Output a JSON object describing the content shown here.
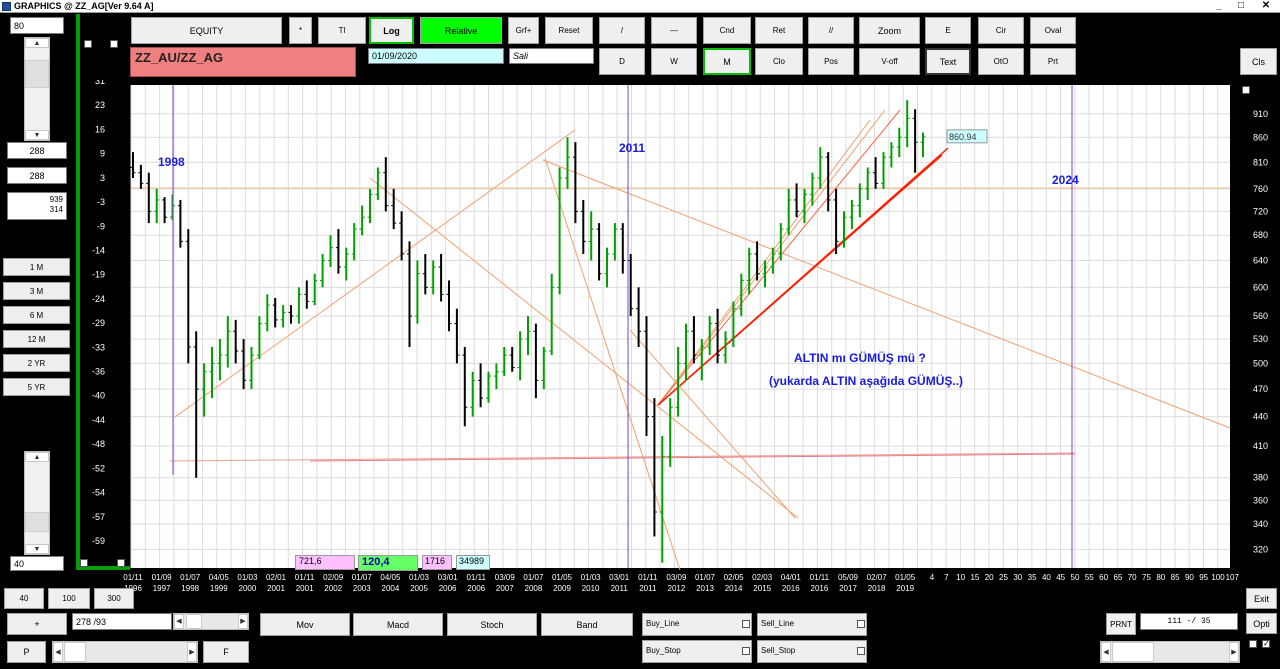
{
  "window": {
    "title": "GRAPHICS @ ZZ_AG[Ver 9.64 A]",
    "controls": [
      "_",
      "□",
      "✕"
    ]
  },
  "toolbar_row1": {
    "equity": "EQUITY",
    "star": "*",
    "tt": "Tl",
    "log": "Log",
    "relative": "Relative",
    "grf_plus": "Grf+",
    "reset": "Reset",
    "slash_one": "/",
    "dash": "—",
    "cnd": "Cnd",
    "ret": "Ret",
    "double_slash": "//",
    "zoom": "Zoom",
    "e": "E",
    "cir": "Cir",
    "oval": "Oval"
  },
  "toolbar_row2": {
    "d": "D",
    "w": "W",
    "m": "M",
    "clo": "Clo",
    "pos": "Pos",
    "v_off": "V-off",
    "text": "Text",
    "oto": "OtO",
    "prt": "Prt"
  },
  "cls": "Cls",
  "symbol": "ZZ_AU/ZZ_AG",
  "date": "01/09/2020",
  "day": "Sali",
  "left_panel": {
    "top_value": "80",
    "box1": "288",
    "box2": "288",
    "box3_line1": "939",
    "box3_line2": "314",
    "periods": [
      "1 M",
      "3 M",
      "6 M",
      "12 M",
      "2 YR",
      "5 YR"
    ],
    "bottom_value": "40"
  },
  "info_boxes": {
    "pink": "721,6",
    "green": "120,4",
    "violet": "1716",
    "cyan": "34989"
  },
  "bottom": {
    "b40": "40",
    "b100": "100",
    "b300": "300",
    "plus": "+",
    "counter": "278 /93",
    "p": "P",
    "f": "F",
    "mov": "Mov",
    "macd": "Macd",
    "stoch": "Stoch",
    "band": "Band",
    "buy_line": "Buy_Line",
    "sell_line": "Sell_Line",
    "buy_stop": "Buy_Stop",
    "sell_stop": "Sell_Stop",
    "prnt": "PRNT",
    "page": "111 -/ 35",
    "exit": "Exit",
    "opti": "Opti",
    "check_mark": "✓"
  },
  "chart_data": {
    "type": "bar",
    "description_type": "ohlc",
    "left_axis_label": "%",
    "left_axis_ticks": [
      "31",
      "23",
      "16",
      "9",
      "3",
      "-3",
      "-9",
      "-14",
      "-19",
      "-24",
      "-29",
      "-33",
      "-36",
      "-40",
      "-44",
      "-48",
      "-52",
      "-54",
      "-57",
      "-59"
    ],
    "right_axis_ticks": [
      "910",
      "860",
      "810",
      "760",
      "720",
      "680",
      "640",
      "600",
      "560",
      "530",
      "500",
      "470",
      "440",
      "410",
      "380",
      "360",
      "340",
      "320"
    ],
    "right_axis_range": [
      306,
      975
    ],
    "right_axis_scale": "log",
    "x_ticks": [
      [
        "01/11",
        "1996"
      ],
      [
        "01/09",
        "1997"
      ],
      [
        "01/07",
        "1998"
      ],
      [
        "04/05",
        "1999"
      ],
      [
        "01/03",
        "2000"
      ],
      [
        "02/01",
        "2001"
      ],
      [
        "01/11",
        "2001"
      ],
      [
        "02/09",
        "2002"
      ],
      [
        "01/07",
        "2003"
      ],
      [
        "04/05",
        "2004"
      ],
      [
        "01/03",
        "2005"
      ],
      [
        "03/01",
        "2006"
      ],
      [
        "01/11",
        "2006"
      ],
      [
        "03/09",
        "2007"
      ],
      [
        "01/07",
        "2008"
      ],
      [
        "01/05",
        "2009"
      ],
      [
        "01/03",
        "2010"
      ],
      [
        "03/01",
        "2011"
      ],
      [
        "01/11",
        "2011"
      ],
      [
        "03/09",
        "2012"
      ],
      [
        "01/07",
        "2013"
      ],
      [
        "02/05",
        "2014"
      ],
      [
        "02/03",
        "2015"
      ],
      [
        "04/01",
        "2016"
      ],
      [
        "01/11",
        "2016"
      ],
      [
        "05/09",
        "2017"
      ],
      [
        "02/07",
        "2018"
      ],
      [
        "01/05",
        "2019"
      ]
    ],
    "x_tick_future": [
      "4",
      "7",
      "10",
      "15",
      "20",
      "25",
      "30",
      "35",
      "40",
      "45",
      "50",
      "55",
      "60",
      "65",
      "70",
      "75",
      "80",
      "85",
      "90",
      "95",
      "100",
      "107"
    ],
    "year_markers": [
      "1998",
      "2011",
      "2024"
    ],
    "last_value_label": "860.94",
    "annotation_line1": "ALTIN mı GÜMÜŞ mü ?",
    "annotation_line2": "(yukarda  ALTIN  aşağıda  GÜMÜŞ..)",
    "series": [
      {
        "values": [
          {
            "o": 800,
            "h": 830,
            "l": 780,
            "c": 790
          },
          {
            "o": 790,
            "h": 805,
            "l": 760,
            "c": 770
          },
          {
            "o": 770,
            "h": 790,
            "l": 700,
            "c": 720
          },
          {
            "o": 720,
            "h": 760,
            "l": 700,
            "c": 740
          },
          {
            "o": 740,
            "h": 745,
            "l": 700,
            "c": 710
          },
          {
            "o": 710,
            "h": 750,
            "l": 705,
            "c": 730
          },
          {
            "o": 730,
            "h": 740,
            "l": 660,
            "c": 670
          },
          {
            "o": 670,
            "h": 690,
            "l": 500,
            "c": 520
          },
          {
            "o": 520,
            "h": 540,
            "l": 380,
            "c": 470
          },
          {
            "o": 470,
            "h": 500,
            "l": 440,
            "c": 490
          },
          {
            "o": 490,
            "h": 520,
            "l": 460,
            "c": 500
          },
          {
            "o": 500,
            "h": 530,
            "l": 480,
            "c": 510
          },
          {
            "o": 510,
            "h": 560,
            "l": 495,
            "c": 540
          },
          {
            "o": 540,
            "h": 555,
            "l": 500,
            "c": 515
          },
          {
            "o": 515,
            "h": 530,
            "l": 470,
            "c": 480
          },
          {
            "o": 480,
            "h": 520,
            "l": 470,
            "c": 510
          },
          {
            "o": 510,
            "h": 560,
            "l": 505,
            "c": 550
          },
          {
            "o": 550,
            "h": 590,
            "l": 540,
            "c": 575
          },
          {
            "o": 575,
            "h": 585,
            "l": 545,
            "c": 555
          },
          {
            "o": 555,
            "h": 575,
            "l": 545,
            "c": 565
          },
          {
            "o": 565,
            "h": 575,
            "l": 550,
            "c": 560
          },
          {
            "o": 560,
            "h": 600,
            "l": 550,
            "c": 590
          },
          {
            "o": 590,
            "h": 610,
            "l": 570,
            "c": 580
          },
          {
            "o": 580,
            "h": 620,
            "l": 575,
            "c": 610
          },
          {
            "o": 610,
            "h": 650,
            "l": 600,
            "c": 640
          },
          {
            "o": 640,
            "h": 680,
            "l": 630,
            "c": 660
          },
          {
            "o": 660,
            "h": 690,
            "l": 620,
            "c": 630
          },
          {
            "o": 630,
            "h": 660,
            "l": 610,
            "c": 650
          },
          {
            "o": 650,
            "h": 700,
            "l": 640,
            "c": 690
          },
          {
            "o": 690,
            "h": 730,
            "l": 680,
            "c": 710
          },
          {
            "o": 710,
            "h": 760,
            "l": 700,
            "c": 750
          },
          {
            "o": 750,
            "h": 800,
            "l": 740,
            "c": 790
          },
          {
            "o": 790,
            "h": 820,
            "l": 720,
            "c": 730
          },
          {
            "o": 730,
            "h": 760,
            "l": 690,
            "c": 700
          },
          {
            "o": 700,
            "h": 720,
            "l": 640,
            "c": 650
          },
          {
            "o": 650,
            "h": 670,
            "l": 520,
            "c": 560
          },
          {
            "o": 560,
            "h": 640,
            "l": 550,
            "c": 620
          },
          {
            "o": 620,
            "h": 650,
            "l": 590,
            "c": 600
          },
          {
            "o": 600,
            "h": 640,
            "l": 590,
            "c": 630
          },
          {
            "o": 630,
            "h": 650,
            "l": 580,
            "c": 590
          },
          {
            "o": 590,
            "h": 610,
            "l": 540,
            "c": 550
          },
          {
            "o": 550,
            "h": 570,
            "l": 500,
            "c": 510
          },
          {
            "o": 510,
            "h": 520,
            "l": 430,
            "c": 450
          },
          {
            "o": 450,
            "h": 490,
            "l": 440,
            "c": 480
          },
          {
            "o": 480,
            "h": 500,
            "l": 450,
            "c": 460
          },
          {
            "o": 460,
            "h": 490,
            "l": 455,
            "c": 485
          },
          {
            "o": 485,
            "h": 500,
            "l": 470,
            "c": 490
          },
          {
            "o": 490,
            "h": 520,
            "l": 485,
            "c": 510
          },
          {
            "o": 510,
            "h": 520,
            "l": 490,
            "c": 495
          },
          {
            "o": 495,
            "h": 540,
            "l": 480,
            "c": 530
          },
          {
            "o": 530,
            "h": 560,
            "l": 510,
            "c": 540
          },
          {
            "o": 540,
            "h": 550,
            "l": 460,
            "c": 480
          },
          {
            "o": 480,
            "h": 520,
            "l": 470,
            "c": 515
          },
          {
            "o": 515,
            "h": 620,
            "l": 510,
            "c": 600
          },
          {
            "o": 600,
            "h": 800,
            "l": 590,
            "c": 780
          },
          {
            "o": 780,
            "h": 860,
            "l": 760,
            "c": 820
          },
          {
            "o": 820,
            "h": 850,
            "l": 700,
            "c": 720
          },
          {
            "o": 720,
            "h": 740,
            "l": 650,
            "c": 670
          },
          {
            "o": 670,
            "h": 720,
            "l": 640,
            "c": 690
          },
          {
            "o": 690,
            "h": 700,
            "l": 610,
            "c": 620
          },
          {
            "o": 620,
            "h": 660,
            "l": 600,
            "c": 650
          },
          {
            "o": 650,
            "h": 700,
            "l": 640,
            "c": 690
          },
          {
            "o": 690,
            "h": 700,
            "l": 620,
            "c": 640
          },
          {
            "o": 640,
            "h": 650,
            "l": 560,
            "c": 570
          },
          {
            "o": 570,
            "h": 600,
            "l": 520,
            "c": 540
          },
          {
            "o": 540,
            "h": 560,
            "l": 420,
            "c": 440
          },
          {
            "o": 440,
            "h": 460,
            "l": 330,
            "c": 350
          },
          {
            "o": 350,
            "h": 420,
            "l": 310,
            "c": 400
          },
          {
            "o": 400,
            "h": 460,
            "l": 390,
            "c": 450
          },
          {
            "o": 450,
            "h": 520,
            "l": 440,
            "c": 500
          },
          {
            "o": 500,
            "h": 550,
            "l": 480,
            "c": 540
          },
          {
            "o": 540,
            "h": 560,
            "l": 500,
            "c": 510
          },
          {
            "o": 510,
            "h": 530,
            "l": 480,
            "c": 520
          },
          {
            "o": 520,
            "h": 560,
            "l": 510,
            "c": 550
          },
          {
            "o": 550,
            "h": 570,
            "l": 500,
            "c": 510
          },
          {
            "o": 510,
            "h": 540,
            "l": 500,
            "c": 530
          },
          {
            "o": 530,
            "h": 580,
            "l": 520,
            "c": 570
          },
          {
            "o": 570,
            "h": 620,
            "l": 560,
            "c": 610
          },
          {
            "o": 610,
            "h": 660,
            "l": 590,
            "c": 650
          },
          {
            "o": 650,
            "h": 670,
            "l": 610,
            "c": 620
          },
          {
            "o": 620,
            "h": 640,
            "l": 600,
            "c": 630
          },
          {
            "o": 630,
            "h": 660,
            "l": 620,
            "c": 650
          },
          {
            "o": 650,
            "h": 700,
            "l": 640,
            "c": 690
          },
          {
            "o": 690,
            "h": 760,
            "l": 680,
            "c": 740
          },
          {
            "o": 740,
            "h": 770,
            "l": 710,
            "c": 720
          },
          {
            "o": 720,
            "h": 760,
            "l": 700,
            "c": 750
          },
          {
            "o": 750,
            "h": 790,
            "l": 730,
            "c": 780
          },
          {
            "o": 780,
            "h": 840,
            "l": 760,
            "c": 820
          },
          {
            "o": 820,
            "h": 830,
            "l": 720,
            "c": 740
          },
          {
            "o": 740,
            "h": 760,
            "l": 650,
            "c": 670
          },
          {
            "o": 670,
            "h": 720,
            "l": 660,
            "c": 710
          },
          {
            "o": 710,
            "h": 740,
            "l": 690,
            "c": 730
          },
          {
            "o": 730,
            "h": 770,
            "l": 710,
            "c": 760
          },
          {
            "o": 760,
            "h": 800,
            "l": 740,
            "c": 790
          },
          {
            "o": 790,
            "h": 820,
            "l": 760,
            "c": 770
          },
          {
            "o": 770,
            "h": 830,
            "l": 760,
            "c": 820
          },
          {
            "o": 820,
            "h": 850,
            "l": 800,
            "c": 840
          },
          {
            "o": 840,
            "h": 880,
            "l": 820,
            "c": 860
          },
          {
            "o": 860,
            "h": 940,
            "l": 840,
            "c": 900
          },
          {
            "o": 900,
            "h": 920,
            "l": 790,
            "c": 850
          },
          {
            "o": 850,
            "h": 870,
            "l": 820,
            "c": 861
          }
        ]
      }
    ]
  }
}
